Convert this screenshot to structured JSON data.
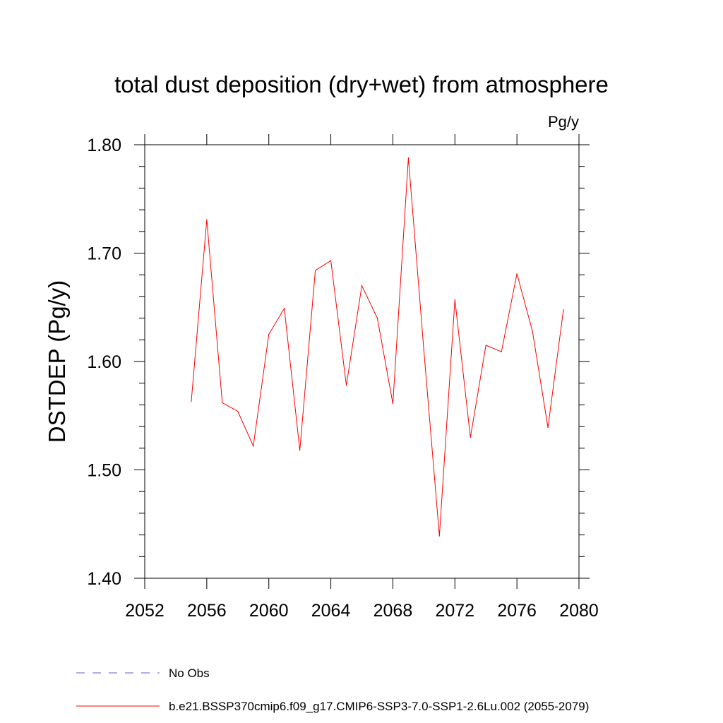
{
  "chart_data": {
    "type": "line",
    "title": "total dust deposition (dry+wet) from atmosphere",
    "units_label": "Pg/y",
    "ylabel": "DSTDEP  (Pg/y)",
    "xlabel": "",
    "xlim": [
      2052,
      2080
    ],
    "ylim": [
      1.4,
      1.8
    ],
    "x_ticks": [
      2052,
      2056,
      2060,
      2064,
      2068,
      2072,
      2076,
      2080
    ],
    "x_tick_labels": [
      "2052",
      "2056",
      "2060",
      "2064",
      "2068",
      "2072",
      "2076",
      "2080"
    ],
    "y_ticks": [
      1.4,
      1.5,
      1.6,
      1.7,
      1.8
    ],
    "y_tick_labels": [
      "1.40",
      "1.50",
      "1.60",
      "1.70",
      "1.80"
    ],
    "grid": false,
    "legend_position": "bottom",
    "series": [
      {
        "name": "No Obs",
        "color": "#6a5acd",
        "style": "dashed",
        "x": [],
        "y": []
      },
      {
        "name": "b.e21.BSSP370cmip6.f09_g17.CMIP6-SSP3-7.0-SSP1-2.6Lu.002 (2055-2079)",
        "color": "#ff0000",
        "style": "solid",
        "x": [
          2055,
          2056,
          2057,
          2058,
          2059,
          2060,
          2061,
          2062,
          2063,
          2064,
          2065,
          2066,
          2067,
          2068,
          2069,
          2070,
          2071,
          2072,
          2073,
          2074,
          2075,
          2076,
          2077,
          2078,
          2079
        ],
        "y": [
          1.563,
          1.731,
          1.562,
          1.554,
          1.522,
          1.625,
          1.649,
          1.518,
          1.684,
          1.693,
          1.578,
          1.67,
          1.64,
          1.561,
          1.788,
          1.61,
          1.439,
          1.657,
          1.53,
          1.615,
          1.609,
          1.681,
          1.628,
          1.539,
          1.648
        ]
      }
    ]
  }
}
